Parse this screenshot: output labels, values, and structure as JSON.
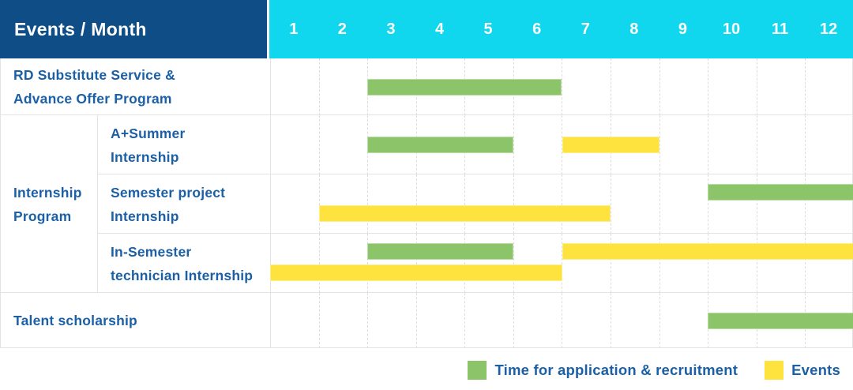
{
  "header": {
    "title": "Events / Month",
    "months": [
      "1",
      "2",
      "3",
      "4",
      "5",
      "6",
      "7",
      "8",
      "9",
      "10",
      "11",
      "12"
    ]
  },
  "group": {
    "internship": {
      "label": "Internship Program",
      "lines": [
        "Internship",
        "Program"
      ]
    }
  },
  "rows": [
    {
      "id": "rd-substitute-service",
      "group": null,
      "label": "RD Substitute Service & Advance Offer Program",
      "label_lines": [
        "RD Substitute Service &",
        "Advance Offer Program"
      ],
      "bars": [
        {
          "kind": "application",
          "start": 3,
          "end": 6,
          "line": "mid"
        }
      ]
    },
    {
      "id": "a-plus-summer-internship",
      "group": "internship",
      "label": "A+Summer Internship",
      "label_lines": [
        "A+Summer",
        "Internship"
      ],
      "bars": [
        {
          "kind": "application",
          "start": 3,
          "end": 5,
          "line": "mid"
        },
        {
          "kind": "events",
          "start": 7,
          "end": 8,
          "line": "mid"
        }
      ]
    },
    {
      "id": "semester-project-internship",
      "group": "internship",
      "label": "Semester project Internship",
      "label_lines": [
        "Semester project",
        "Internship"
      ],
      "bars": [
        {
          "kind": "application",
          "start": 10,
          "end": 12,
          "line": "top"
        },
        {
          "kind": "events",
          "start": 2,
          "end": 7,
          "line": "bottom"
        }
      ]
    },
    {
      "id": "in-semester-technician-internship",
      "group": "internship",
      "label": "In-Semester technician Internship",
      "label_lines": [
        "In-Semester",
        "technician Internship"
      ],
      "bars": [
        {
          "kind": "application",
          "start": 3,
          "end": 5,
          "line": "top"
        },
        {
          "kind": "events",
          "start": 7,
          "end": 12,
          "line": "top"
        },
        {
          "kind": "events",
          "start": 1,
          "end": 6,
          "line": "bottom"
        }
      ]
    },
    {
      "id": "talent-scholarship",
      "group": null,
      "label": "Talent scholarship",
      "label_lines": [
        "Talent scholarship"
      ],
      "bars": [
        {
          "kind": "application",
          "start": 10,
          "end": 12,
          "line": "mid"
        }
      ]
    }
  ],
  "legend": {
    "items": [
      {
        "kind": "application",
        "label": "Time for application & recruitment"
      },
      {
        "kind": "events",
        "label": "Events"
      }
    ]
  },
  "colors": {
    "header_bg": "#0e4d86",
    "month_header_bg": "#10d6ee",
    "application": "#8cc569",
    "events": "#fee23e",
    "label_text": "#1b60a6",
    "grid_line": "#e3e3e3"
  },
  "chart_data": {
    "type": "gantt",
    "title": "Events / Month",
    "x_unit": "month",
    "x_ticks": [
      1,
      2,
      3,
      4,
      5,
      6,
      7,
      8,
      9,
      10,
      11,
      12
    ],
    "x_range": [
      1,
      12
    ],
    "grid": true,
    "legend_position": "bottom-right",
    "legend": [
      {
        "name": "Time for application & recruitment",
        "color": "#8cc569"
      },
      {
        "name": "Events",
        "color": "#fee23e"
      }
    ],
    "tasks": [
      {
        "row": "RD Substitute Service & Advance Offer Program",
        "group": null,
        "application_recruitment_months": [
          [
            3,
            6
          ]
        ],
        "event_months": []
      },
      {
        "row": "A+Summer Internship",
        "group": "Internship Program",
        "application_recruitment_months": [
          [
            3,
            5
          ]
        ],
        "event_months": [
          [
            7,
            8
          ]
        ]
      },
      {
        "row": "Semester project Internship",
        "group": "Internship Program",
        "application_recruitment_months": [
          [
            10,
            12
          ]
        ],
        "event_months": [
          [
            2,
            7
          ]
        ]
      },
      {
        "row": "In-Semester technician Internship",
        "group": "Internship Program",
        "application_recruitment_months": [
          [
            3,
            5
          ]
        ],
        "event_months": [
          [
            7,
            12
          ],
          [
            1,
            6
          ]
        ]
      },
      {
        "row": "Talent scholarship",
        "group": null,
        "application_recruitment_months": [
          [
            10,
            12
          ]
        ],
        "event_months": []
      }
    ]
  }
}
